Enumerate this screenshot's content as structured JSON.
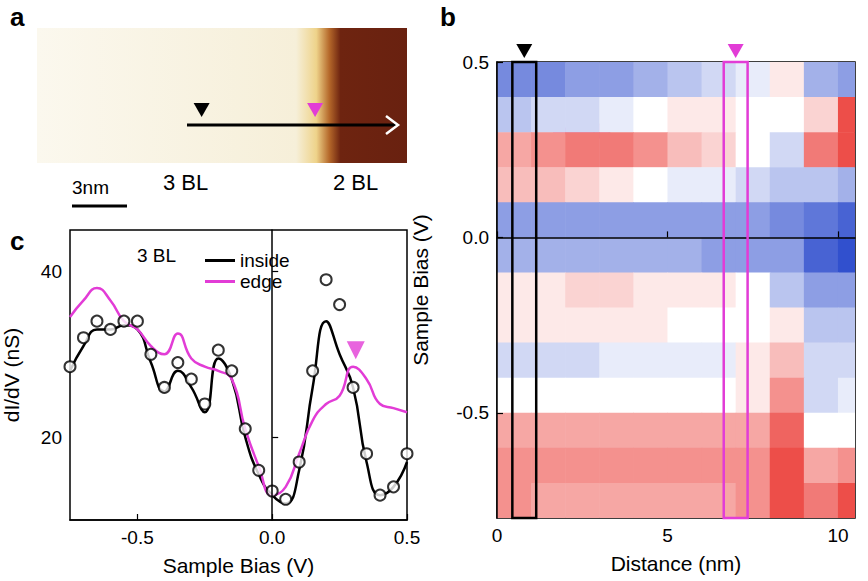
{
  "chart_data": [
    {
      "panel": "a",
      "type": "topography",
      "labels": [
        "3 BL",
        "2 BL"
      ],
      "scale_bar": "3nm"
    },
    {
      "panel": "b",
      "type": "heatmap",
      "x_label": "Distance (nm)",
      "y_label": "Sample Bias (V)",
      "xlim": [
        0,
        10.5
      ],
      "xticks": [
        0,
        5,
        10
      ],
      "ylim": [
        -0.8,
        0.5
      ],
      "yticks": [
        -0.5,
        {
          "value": 0,
          "label": "0.0"
        },
        0.5
      ],
      "grid": false,
      "x": [
        0.5,
        1.5,
        2.5,
        3.5,
        4.5,
        5.5,
        6.5,
        7.5,
        8.5,
        9.5,
        10.5
      ],
      "y": [
        0.45,
        0.35,
        0.25,
        0.15,
        0.05,
        -0.05,
        -0.15,
        -0.25,
        -0.35,
        -0.45,
        -0.55,
        -0.65,
        -0.75
      ],
      "value_range": [
        -1,
        1
      ],
      "cells": [
        [
          -0.6,
          -0.6,
          -0.5,
          -0.5,
          -0.4,
          -0.3,
          -0.2,
          -0.1,
          0.1,
          -0.4,
          -0.5
        ],
        [
          -0.3,
          -0.2,
          -0.2,
          -0.1,
          0,
          0.1,
          0.1,
          0,
          0,
          0.2,
          0.8
        ],
        [
          0.4,
          0.5,
          0.6,
          0.6,
          0.5,
          0.3,
          0.2,
          0,
          -0.2,
          0.6,
          0.8
        ],
        [
          0.3,
          0.3,
          0.2,
          0.1,
          0,
          -0.1,
          -0.1,
          -0.2,
          -0.3,
          -0.3,
          -0.4
        ],
        [
          -0.5,
          -0.5,
          -0.5,
          -0.5,
          -0.5,
          -0.5,
          -0.5,
          -0.5,
          -0.6,
          -0.7,
          -0.8
        ],
        [
          -0.4,
          -0.4,
          -0.4,
          -0.4,
          -0.4,
          -0.4,
          -0.5,
          -0.5,
          -0.5,
          -0.8,
          -0.9
        ],
        [
          0.1,
          0.1,
          0.2,
          0.2,
          0.1,
          0.1,
          0.1,
          0,
          -0.3,
          -0.5,
          -0.5
        ],
        [
          0.1,
          0.1,
          0.1,
          0.1,
          0.1,
          0,
          0,
          0,
          0.1,
          -0.3,
          -0.3
        ],
        [
          -0.2,
          -0.2,
          -0.2,
          -0.1,
          -0.1,
          -0.1,
          -0.1,
          0.1,
          0.3,
          -0.2,
          -0.2
        ],
        [
          0,
          0,
          0,
          0,
          0,
          0,
          0,
          0.1,
          0.5,
          -0.2,
          -0.1
        ],
        [
          0.4,
          0.4,
          0.4,
          0.4,
          0.4,
          0.4,
          0.4,
          0.4,
          0.7,
          0,
          0
        ],
        [
          0.5,
          0.5,
          0.5,
          0.5,
          0.5,
          0.5,
          0.5,
          0.5,
          0.8,
          0.4,
          0.5
        ],
        [
          0.5,
          0.4,
          0.4,
          0.4,
          0.4,
          0.4,
          0.4,
          0.5,
          0.8,
          0.6,
          0.8
        ]
      ],
      "markers": [
        {
          "x": 0.8,
          "color": "#000000"
        },
        {
          "x": 7.0,
          "color": "#e23cd6"
        }
      ]
    },
    {
      "panel": "c",
      "type": "line",
      "x_label": "Sample Bias (V)",
      "y_label": "dI/dV (nS)",
      "xlim": [
        -0.75,
        0.5
      ],
      "xticks": [
        -0.5,
        {
          "value": 0,
          "label": "0.0"
        },
        0.5
      ],
      "ylim": [
        10,
        45
      ],
      "yticks": [
        20,
        40
      ],
      "grid": false,
      "legend": "top",
      "annotations": [
        {
          "text": "3 BL"
        }
      ],
      "x": [
        -0.75,
        -0.7,
        -0.65,
        -0.6,
        -0.55,
        -0.5,
        -0.45,
        -0.4,
        -0.35,
        -0.3,
        -0.25,
        -0.2,
        -0.15,
        -0.1,
        -0.05,
        0,
        0.05,
        0.1,
        0.15,
        0.2,
        0.25,
        0.3,
        0.35,
        0.4,
        0.45,
        0.5
      ],
      "series": [
        {
          "name": "inside",
          "type": "line",
          "color": "#000000",
          "values": [
            28,
            31,
            33,
            33,
            33.5,
            33,
            29,
            25.5,
            28,
            26,
            23,
            29.5,
            27,
            20,
            15.5,
            13,
            12,
            16,
            26,
            34,
            30,
            26,
            17,
            13,
            14,
            17
          ]
        },
        {
          "name": "edge",
          "type": "line",
          "color": "#e23cd6",
          "values": [
            34.5,
            36.5,
            38,
            36.5,
            34,
            33,
            31,
            30,
            32.5,
            29.5,
            28.5,
            28,
            27,
            21,
            16.5,
            13,
            14,
            18,
            22,
            24,
            25,
            28.5,
            27,
            24,
            23.5,
            23
          ]
        },
        {
          "type": "scatter",
          "marker": "circle_open",
          "color": "#000000",
          "values": [
            28.5,
            32,
            34,
            33,
            34,
            34,
            30,
            26,
            29,
            27,
            24,
            30.5,
            28,
            21,
            16,
            13.5,
            12.5,
            17,
            28,
            39,
            36,
            26,
            18,
            13,
            14,
            18
          ]
        }
      ],
      "markers": [
        {
          "x": 0.31,
          "y": 30.5,
          "color": "#e23cd6"
        }
      ]
    }
  ]
}
